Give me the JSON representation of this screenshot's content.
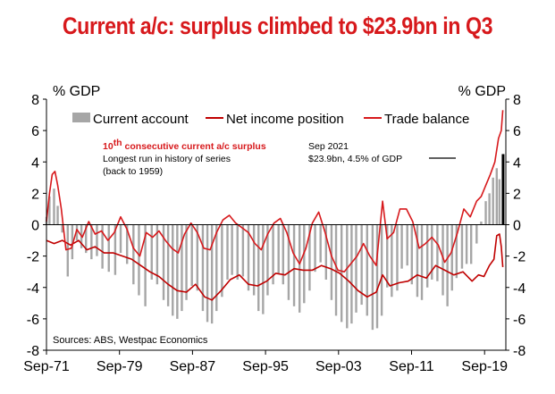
{
  "chart_data": {
    "type": "bar+line",
    "title": "Current a/c: surplus climbed to $23.9bn in Q3",
    "ylabel_left": "% GDP",
    "ylabel_right": "% GDP",
    "ylim": [
      -8,
      8
    ],
    "yticks": [
      8,
      6,
      4,
      2,
      0,
      -2,
      -4,
      -6,
      -8
    ],
    "xlim": [
      1971.67,
      2022.0
    ],
    "xticks": [
      {
        "label": "Sep-71",
        "year": 1971.67
      },
      {
        "label": "Sep-79",
        "year": 1979.67
      },
      {
        "label": "Sep-87",
        "year": 1987.67
      },
      {
        "label": "Sep-95",
        "year": 1995.67
      },
      {
        "label": "Sep-03",
        "year": 2003.67
      },
      {
        "label": "Sep-11",
        "year": 2011.67
      },
      {
        "label": "Sep-19",
        "year": 2019.67
      }
    ],
    "legend": [
      {
        "name": "Current account",
        "style": "bar",
        "color": "#a6a6a6"
      },
      {
        "name": "Net income position",
        "style": "line",
        "color": "#c00000"
      },
      {
        "name": "Trade balance",
        "style": "line",
        "color": "#d7191c"
      }
    ],
    "annotations": {
      "note_superscript_num": "10",
      "note_superscript_suffix": "th",
      "note_red": " consecutive current a/c surplus",
      "note_line2": "Longest run in history of series",
      "note_line3": "(back to 1959)",
      "latest_line1": "Sep 2021",
      "latest_line2": "$23.9bn, 4.5% of GDP"
    },
    "source": "Sources: ABS, Westpac Economics",
    "highlight": {
      "year": 2021.67,
      "value": 4.5,
      "color": "#000000"
    },
    "series": [
      {
        "name": "Current account",
        "type": "bar",
        "color": "#a6a6a6",
        "points": [
          [
            1971.67,
            0.5
          ],
          [
            1972.0,
            1.8
          ],
          [
            1972.5,
            2.3
          ],
          [
            1972.9,
            1.2
          ],
          [
            1973.4,
            -0.5
          ],
          [
            1974.0,
            -3.3
          ],
          [
            1974.5,
            -2.2
          ],
          [
            1975.0,
            -1.0
          ],
          [
            1975.5,
            -1.5
          ],
          [
            1976.0,
            -1.8
          ],
          [
            1976.6,
            -2.2
          ],
          [
            1977.2,
            -2.0
          ],
          [
            1977.8,
            -2.8
          ],
          [
            1978.5,
            -3.0
          ],
          [
            1979.2,
            -3.2
          ],
          [
            1979.8,
            -1.8
          ],
          [
            1980.5,
            -2.5
          ],
          [
            1981.2,
            -3.8
          ],
          [
            1981.8,
            -4.5
          ],
          [
            1982.5,
            -5.2
          ],
          [
            1983.2,
            -3.5
          ],
          [
            1983.8,
            -3.8
          ],
          [
            1984.5,
            -4.8
          ],
          [
            1985.0,
            -5.2
          ],
          [
            1985.5,
            -5.8
          ],
          [
            1986.0,
            -6.0
          ],
          [
            1986.5,
            -5.5
          ],
          [
            1987.0,
            -4.8
          ],
          [
            1987.6,
            -3.9
          ],
          [
            1988.2,
            -4.2
          ],
          [
            1988.8,
            -5.5
          ],
          [
            1989.3,
            -6.2
          ],
          [
            1989.8,
            -6.3
          ],
          [
            1990.3,
            -5.5
          ],
          [
            1990.9,
            -4.6
          ],
          [
            1991.5,
            -3.5
          ],
          [
            1992.0,
            -3.2
          ],
          [
            1992.6,
            -3.5
          ],
          [
            1993.2,
            -3.3
          ],
          [
            1993.8,
            -4.2
          ],
          [
            1994.4,
            -4.5
          ],
          [
            1994.9,
            -5.5
          ],
          [
            1995.4,
            -5.7
          ],
          [
            1995.9,
            -4.5
          ],
          [
            1996.5,
            -3.8
          ],
          [
            1997.1,
            -3.1
          ],
          [
            1997.6,
            -3.8
          ],
          [
            1998.2,
            -4.8
          ],
          [
            1998.8,
            -5.2
          ],
          [
            1999.4,
            -5.6
          ],
          [
            1999.9,
            -5.0
          ],
          [
            2000.5,
            -4.2
          ],
          [
            2001.1,
            -3.0
          ],
          [
            2001.7,
            -2.4
          ],
          [
            2002.3,
            -3.5
          ],
          [
            2002.9,
            -4.8
          ],
          [
            2003.4,
            -5.8
          ],
          [
            2004.0,
            -6.2
          ],
          [
            2004.6,
            -6.6
          ],
          [
            2005.1,
            -6.3
          ],
          [
            2005.6,
            -5.6
          ],
          [
            2006.2,
            -5.1
          ],
          [
            2006.8,
            -5.8
          ],
          [
            2007.4,
            -6.7
          ],
          [
            2007.9,
            -6.6
          ],
          [
            2008.4,
            -5.8
          ],
          [
            2009.0,
            -4.0
          ],
          [
            2009.5,
            -4.6
          ],
          [
            2010.1,
            -4.2
          ],
          [
            2010.6,
            -2.8
          ],
          [
            2011.2,
            -2.6
          ],
          [
            2011.7,
            -3.8
          ],
          [
            2012.3,
            -4.6
          ],
          [
            2012.8,
            -4.8
          ],
          [
            2013.4,
            -4.0
          ],
          [
            2013.9,
            -3.5
          ],
          [
            2014.5,
            -3.6
          ],
          [
            2015.1,
            -4.5
          ],
          [
            2015.6,
            -5.2
          ],
          [
            2016.1,
            -4.2
          ],
          [
            2016.6,
            -3.4
          ],
          [
            2017.2,
            -2.8
          ],
          [
            2017.7,
            -2.5
          ],
          [
            2018.2,
            -2.5
          ],
          [
            2018.8,
            -1.2
          ],
          [
            2019.3,
            0.2
          ],
          [
            2019.8,
            1.5
          ],
          [
            2020.2,
            2.0
          ],
          [
            2020.6,
            3.0
          ],
          [
            2021.0,
            3.6
          ],
          [
            2021.3,
            2.9
          ],
          [
            2021.67,
            4.5
          ]
        ]
      },
      {
        "name": "Net income position",
        "type": "line",
        "color": "#c00000",
        "points": [
          [
            1971.67,
            -1.0
          ],
          [
            1972.5,
            -1.2
          ],
          [
            1973.4,
            -1.0
          ],
          [
            1974.3,
            -1.3
          ],
          [
            1975.2,
            -1.0
          ],
          [
            1976.1,
            -1.6
          ],
          [
            1977.0,
            -1.4
          ],
          [
            1978.0,
            -1.8
          ],
          [
            1979.0,
            -1.8
          ],
          [
            1980.0,
            -2.0
          ],
          [
            1981.0,
            -2.2
          ],
          [
            1982.0,
            -2.6
          ],
          [
            1983.0,
            -3.0
          ],
          [
            1984.0,
            -3.3
          ],
          [
            1985.0,
            -3.8
          ],
          [
            1986.0,
            -4.2
          ],
          [
            1987.0,
            -4.3
          ],
          [
            1988.0,
            -3.8
          ],
          [
            1989.0,
            -4.6
          ],
          [
            1989.8,
            -4.8
          ],
          [
            1990.8,
            -4.2
          ],
          [
            1991.8,
            -3.5
          ],
          [
            1992.8,
            -3.2
          ],
          [
            1993.8,
            -3.8
          ],
          [
            1994.8,
            -3.9
          ],
          [
            1995.8,
            -3.6
          ],
          [
            1996.8,
            -3.1
          ],
          [
            1997.8,
            -3.2
          ],
          [
            1998.8,
            -2.8
          ],
          [
            1999.8,
            -2.9
          ],
          [
            2000.8,
            -2.9
          ],
          [
            2001.8,
            -2.6
          ],
          [
            2002.8,
            -2.8
          ],
          [
            2003.8,
            -3.1
          ],
          [
            2004.8,
            -3.6
          ],
          [
            2005.8,
            -4.2
          ],
          [
            2006.8,
            -4.6
          ],
          [
            2007.8,
            -4.3
          ],
          [
            2008.5,
            -3.2
          ],
          [
            2009.3,
            -3.9
          ],
          [
            2010.3,
            -3.7
          ],
          [
            2011.3,
            -3.6
          ],
          [
            2012.3,
            -3.2
          ],
          [
            2013.3,
            -3.4
          ],
          [
            2014.3,
            -2.6
          ],
          [
            2015.3,
            -2.9
          ],
          [
            2016.3,
            -3.2
          ],
          [
            2017.3,
            -3.0
          ],
          [
            2018.3,
            -3.6
          ],
          [
            2019.0,
            -3.2
          ],
          [
            2019.6,
            -3.3
          ],
          [
            2020.2,
            -2.6
          ],
          [
            2020.7,
            -2.2
          ],
          [
            2021.0,
            -0.7
          ],
          [
            2021.3,
            -0.6
          ],
          [
            2021.5,
            -1.4
          ],
          [
            2021.67,
            -2.7
          ]
        ]
      },
      {
        "name": "Trade balance",
        "type": "line",
        "color": "#d7191c",
        "points": [
          [
            1971.67,
            0.2
          ],
          [
            1972.0,
            2.0
          ],
          [
            1972.3,
            3.2
          ],
          [
            1972.6,
            3.4
          ],
          [
            1972.9,
            2.5
          ],
          [
            1973.3,
            1.0
          ],
          [
            1973.8,
            -1.6
          ],
          [
            1974.4,
            -1.5
          ],
          [
            1975.0,
            -0.3
          ],
          [
            1975.6,
            -0.8
          ],
          [
            1976.3,
            0.2
          ],
          [
            1977.0,
            -0.6
          ],
          [
            1977.7,
            -0.4
          ],
          [
            1978.4,
            -1.0
          ],
          [
            1979.1,
            -0.5
          ],
          [
            1979.8,
            0.5
          ],
          [
            1980.5,
            -0.3
          ],
          [
            1981.2,
            -1.5
          ],
          [
            1981.9,
            -2.0
          ],
          [
            1982.6,
            -0.5
          ],
          [
            1983.3,
            -0.8
          ],
          [
            1984.0,
            -0.4
          ],
          [
            1984.7,
            -1.0
          ],
          [
            1985.4,
            -1.5
          ],
          [
            1986.1,
            -1.8
          ],
          [
            1986.8,
            -0.6
          ],
          [
            1987.5,
            0.1
          ],
          [
            1988.2,
            -0.5
          ],
          [
            1988.9,
            -1.5
          ],
          [
            1989.6,
            -1.6
          ],
          [
            1990.3,
            -0.5
          ],
          [
            1991.0,
            0.3
          ],
          [
            1991.7,
            0.6
          ],
          [
            1992.4,
            0.1
          ],
          [
            1993.1,
            -0.2
          ],
          [
            1993.8,
            -0.5
          ],
          [
            1994.5,
            -1.2
          ],
          [
            1995.2,
            -1.6
          ],
          [
            1995.9,
            -0.6
          ],
          [
            1996.6,
            0.1
          ],
          [
            1997.3,
            0.4
          ],
          [
            1998.0,
            -0.5
          ],
          [
            1998.7,
            -1.8
          ],
          [
            1999.4,
            -2.5
          ],
          [
            2000.1,
            -1.5
          ],
          [
            2000.8,
            0.1
          ],
          [
            2001.5,
            0.8
          ],
          [
            2002.2,
            -0.5
          ],
          [
            2002.9,
            -2.0
          ],
          [
            2003.6,
            -2.9
          ],
          [
            2004.3,
            -3.0
          ],
          [
            2005.0,
            -2.5
          ],
          [
            2005.7,
            -2.0
          ],
          [
            2006.4,
            -1.2
          ],
          [
            2007.1,
            -2.0
          ],
          [
            2007.8,
            -2.6
          ],
          [
            2008.5,
            1.5
          ],
          [
            2009.0,
            -0.9
          ],
          [
            2009.7,
            -0.5
          ],
          [
            2010.4,
            1.0
          ],
          [
            2011.1,
            1.0
          ],
          [
            2011.8,
            0.2
          ],
          [
            2012.5,
            -1.5
          ],
          [
            2013.2,
            -1.2
          ],
          [
            2013.9,
            -0.8
          ],
          [
            2014.6,
            -1.3
          ],
          [
            2015.3,
            -2.4
          ],
          [
            2016.0,
            -1.8
          ],
          [
            2016.7,
            -0.5
          ],
          [
            2017.4,
            1.0
          ],
          [
            2018.1,
            0.5
          ],
          [
            2018.8,
            1.5
          ],
          [
            2019.3,
            1.8
          ],
          [
            2019.8,
            2.5
          ],
          [
            2020.3,
            3.2
          ],
          [
            2020.8,
            4.0
          ],
          [
            2021.2,
            5.5
          ],
          [
            2021.5,
            6.0
          ],
          [
            2021.67,
            7.3
          ]
        ]
      }
    ]
  }
}
